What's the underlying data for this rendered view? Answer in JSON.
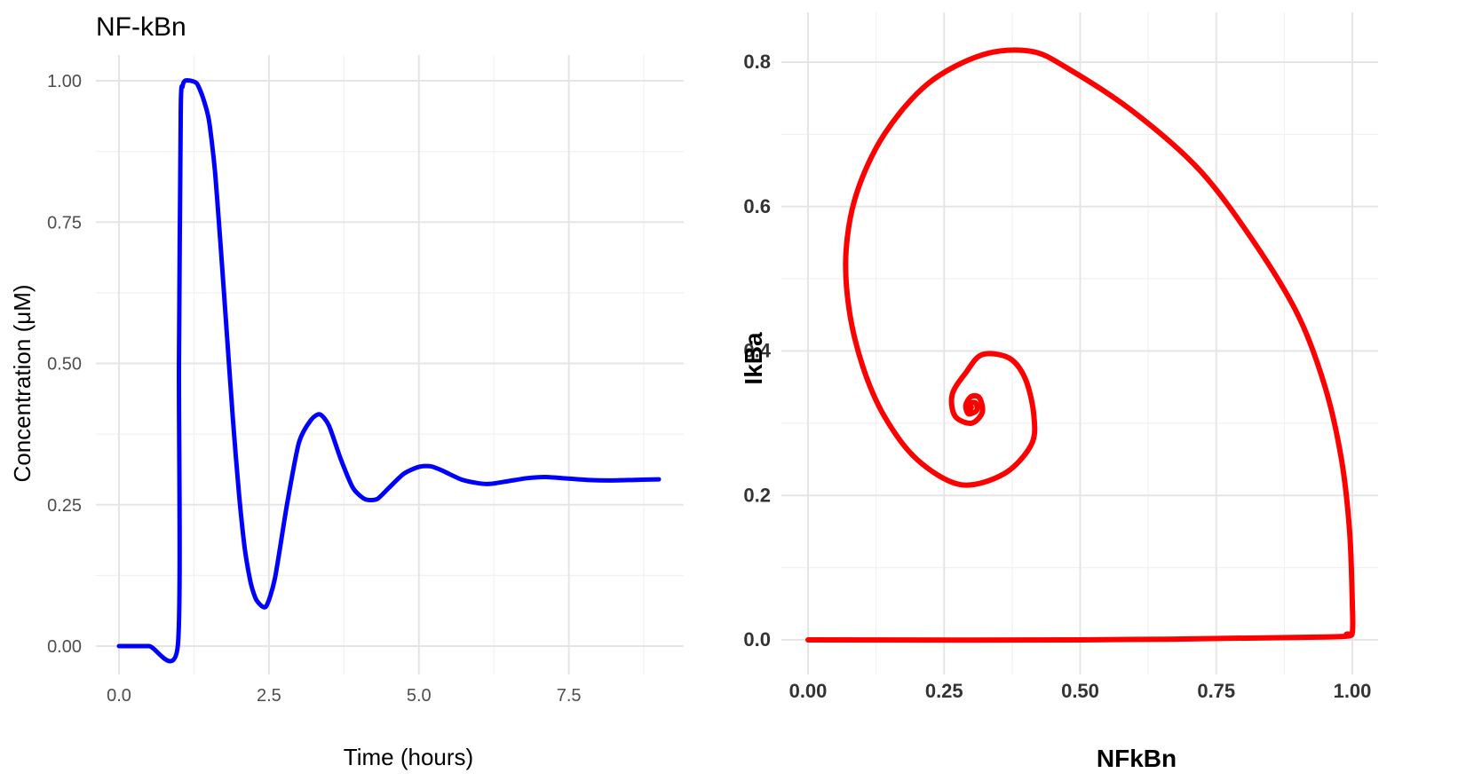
{
  "chart_data": [
    {
      "type": "line",
      "title": "NF-kBn",
      "xlabel": "Time (hours)",
      "ylabel": "Concentration (μM)",
      "xlim": [
        0,
        9
      ],
      "ylim": [
        0,
        1
      ],
      "x_ticks": [
        "0.0",
        "2.5",
        "5.0",
        "7.5"
      ],
      "y_ticks": [
        "0.00",
        "0.25",
        "0.50",
        "0.75",
        "1.00"
      ],
      "grid": true,
      "color": "#0000ff",
      "series": [
        {
          "x": [
            0,
            0.5,
            0.98,
            1.0,
            1.03,
            1.06,
            1.1,
            1.2,
            1.3,
            1.4,
            1.5,
            1.6,
            1.7,
            1.8,
            1.9,
            2.0,
            2.1,
            2.2,
            2.3,
            2.45,
            2.6,
            2.8,
            3.0,
            3.2,
            3.35,
            3.5,
            3.7,
            3.9,
            4.1,
            4.3,
            4.5,
            4.75,
            5.0,
            5.2,
            5.4,
            5.7,
            6.0,
            6.2,
            6.5,
            6.8,
            7.1,
            7.4,
            7.8,
            8.2,
            8.6,
            9.0
          ],
          "y": [
            0,
            0,
            0,
            0.5,
            0.95,
            0.99,
            1.0,
            1.0,
            0.995,
            0.97,
            0.93,
            0.84,
            0.7,
            0.55,
            0.4,
            0.27,
            0.17,
            0.11,
            0.08,
            0.07,
            0.12,
            0.25,
            0.36,
            0.4,
            0.41,
            0.39,
            0.33,
            0.28,
            0.26,
            0.26,
            0.28,
            0.305,
            0.317,
            0.318,
            0.31,
            0.295,
            0.288,
            0.287,
            0.292,
            0.297,
            0.299,
            0.297,
            0.294,
            0.293,
            0.294,
            0.295
          ]
        }
      ]
    },
    {
      "type": "line",
      "title": "",
      "xlabel": "NFkBn",
      "ylabel": "IkBa",
      "xlim": [
        0,
        1
      ],
      "ylim": [
        0,
        0.8
      ],
      "x_ticks": [
        "0.00",
        "0.25",
        "0.50",
        "0.75",
        "1.00"
      ],
      "y_ticks": [
        "0.0",
        "0.2",
        "0.4",
        "0.6",
        "0.8"
      ],
      "grid": true,
      "color": "#ff0000",
      "series": [
        {
          "x": [
            0.0,
            0.5,
            0.95,
            0.99,
            1.0,
            1.0,
            0.995,
            0.98,
            0.95,
            0.9,
            0.82,
            0.72,
            0.6,
            0.48,
            0.41,
            0.32,
            0.22,
            0.14,
            0.09,
            0.07,
            0.075,
            0.1,
            0.14,
            0.2,
            0.28,
            0.36,
            0.41,
            0.415,
            0.4,
            0.37,
            0.32,
            0.29,
            0.265,
            0.27,
            0.3,
            0.32,
            0.315,
            0.3,
            0.29,
            0.295,
            0.31,
            0.308,
            0.298,
            0.296,
            0.3
          ],
          "y": [
            0.0,
            0.0,
            0.004,
            0.008,
            0.01,
            0.05,
            0.15,
            0.25,
            0.35,
            0.45,
            0.55,
            0.65,
            0.73,
            0.79,
            0.815,
            0.81,
            0.77,
            0.7,
            0.62,
            0.54,
            0.46,
            0.38,
            0.31,
            0.25,
            0.215,
            0.23,
            0.27,
            0.31,
            0.36,
            0.39,
            0.395,
            0.37,
            0.34,
            0.31,
            0.3,
            0.315,
            0.335,
            0.337,
            0.325,
            0.313,
            0.318,
            0.328,
            0.327,
            0.318,
            0.322
          ]
        }
      ]
    }
  ]
}
